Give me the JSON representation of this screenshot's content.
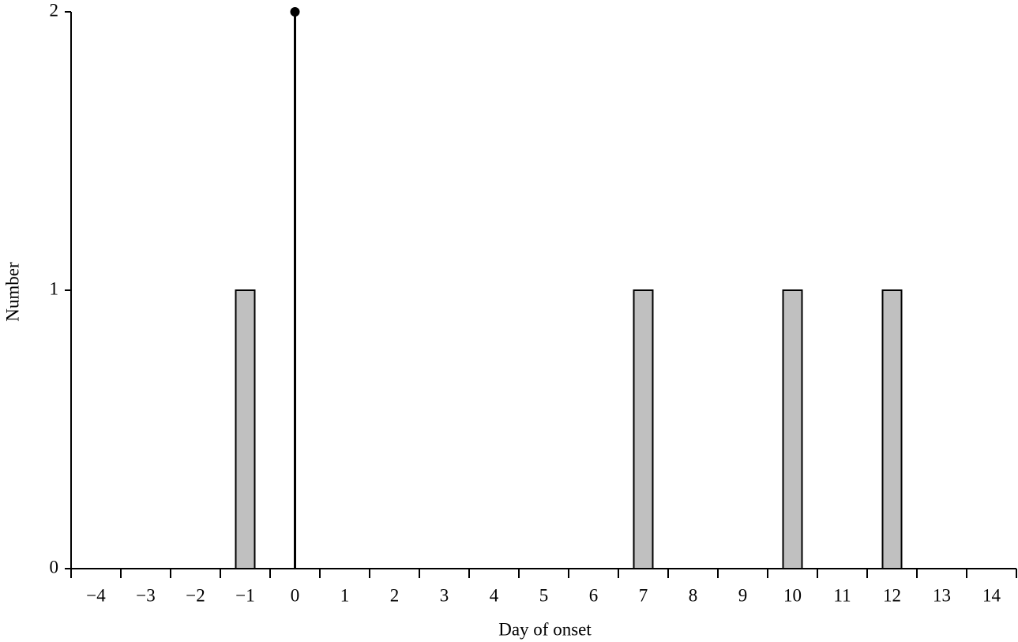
{
  "chart_data": {
    "type": "bar",
    "x_label": "Day of onset",
    "y_label": "Number",
    "categories": [
      "−4",
      "−3",
      "−2",
      "−1",
      "0",
      "1",
      "2",
      "3",
      "4",
      "5",
      "6",
      "7",
      "8",
      "9",
      "10",
      "11",
      "12",
      "13",
      "14"
    ],
    "values": [
      0,
      0,
      0,
      1,
      0,
      0,
      0,
      0,
      0,
      0,
      0,
      1,
      0,
      0,
      1,
      0,
      1,
      0,
      0
    ],
    "color": "#c0c0c0",
    "ylim": [
      0,
      2
    ],
    "yticks": [
      0,
      1,
      2
    ],
    "stem": {
      "category": "0",
      "value": 2
    }
  }
}
